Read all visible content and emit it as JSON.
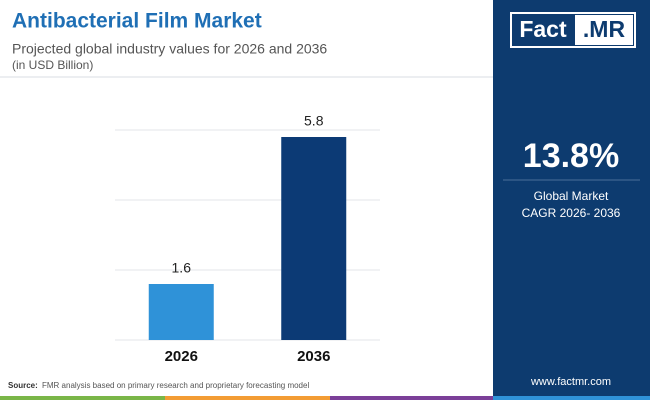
{
  "chart_data": {
    "type": "bar",
    "title": "Antibacterial Film Market",
    "subtitle": "Projected global industry values for 2026 and 2036",
    "unit_note": "(in USD Billion)",
    "categories": [
      "2026",
      "2036"
    ],
    "values": [
      1.6,
      5.8
    ],
    "colors": [
      "#2f92d8",
      "#0c3a75"
    ],
    "ylim": [
      0,
      6
    ],
    "yticks": [
      0,
      2,
      4,
      6
    ],
    "grid": true,
    "source_label": "Source:",
    "source_text": "FMR analysis based on primary research and proprietary forecasting model"
  },
  "side_panel": {
    "brand_left": "Fact",
    "brand_right": ".MR",
    "cagr": "13.8%",
    "cagr_label_1": "Global Market",
    "cagr_label_2": "CAGR 2026- 2036",
    "website": "www.factmr.com"
  }
}
